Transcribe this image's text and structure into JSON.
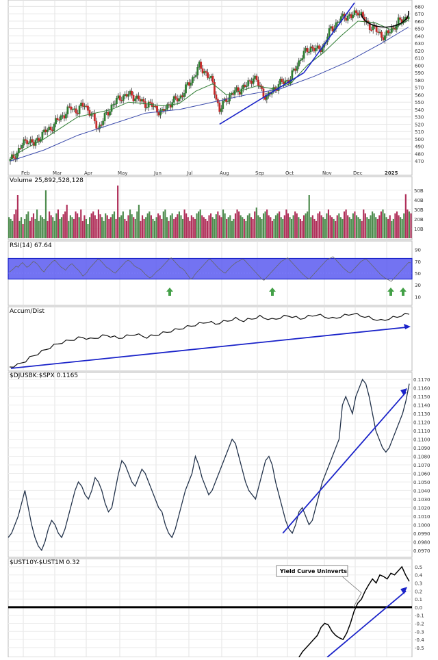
{
  "chart_data": [
    {
      "type": "candlestick",
      "panel": "price",
      "ylim": [
        460,
        685
      ],
      "y_ticks": [
        "680",
        "670",
        "660",
        "650",
        "640",
        "630",
        "620",
        "610",
        "600",
        "590",
        "580",
        "570",
        "560",
        "550",
        "540",
        "530",
        "520",
        "510",
        "500",
        "490",
        "480",
        "470"
      ],
      "x_labels": [
        "Feb",
        "Mar",
        "Apr",
        "May",
        "Jun",
        "Jul",
        "Aug",
        "Sep",
        "Oct",
        "Nov",
        "Dec",
        "2025"
      ],
      "close_path": [
        [
          0,
          470
        ],
        [
          5,
          485
        ],
        [
          10,
          500
        ],
        [
          14,
          492
        ],
        [
          18,
          505
        ],
        [
          24,
          515
        ],
        [
          30,
          530
        ],
        [
          36,
          542
        ],
        [
          40,
          538
        ],
        [
          44,
          548
        ],
        [
          48,
          532
        ],
        [
          52,
          515
        ],
        [
          55,
          525
        ],
        [
          60,
          545
        ],
        [
          66,
          558
        ],
        [
          72,
          560
        ],
        [
          78,
          550
        ],
        [
          84,
          545
        ],
        [
          90,
          535
        ],
        [
          94,
          548
        ],
        [
          100,
          555
        ],
        [
          106,
          575
        ],
        [
          112,
          598
        ],
        [
          116,
          590
        ],
        [
          120,
          575
        ],
        [
          124,
          538
        ],
        [
          128,
          555
        ],
        [
          134,
          565
        ],
        [
          140,
          572
        ],
        [
          144,
          585
        ],
        [
          148,
          570
        ],
        [
          152,
          555
        ],
        [
          156,
          568
        ],
        [
          160,
          575
        ],
        [
          166,
          582
        ],
        [
          172,
          610
        ],
        [
          178,
          625
        ],
        [
          182,
          620
        ],
        [
          186,
          628
        ],
        [
          190,
          650
        ],
        [
          194,
          658
        ],
        [
          198,
          668
        ],
        [
          202,
          665
        ],
        [
          206,
          675
        ],
        [
          210,
          660
        ],
        [
          214,
          652
        ],
        [
          218,
          645
        ],
        [
          222,
          638
        ],
        [
          226,
          650
        ],
        [
          230,
          658
        ],
        [
          236,
          668
        ]
      ],
      "ma_fast_path": [
        [
          0,
          475
        ],
        [
          10,
          488
        ],
        [
          20,
          500
        ],
        [
          30,
          515
        ],
        [
          40,
          530
        ],
        [
          50,
          535
        ],
        [
          60,
          540
        ],
        [
          70,
          550
        ],
        [
          80,
          548
        ],
        [
          90,
          545
        ],
        [
          100,
          548
        ],
        [
          110,
          565
        ],
        [
          120,
          575
        ],
        [
          128,
          560
        ],
        [
          136,
          565
        ],
        [
          146,
          572
        ],
        [
          156,
          568
        ],
        [
          166,
          575
        ],
        [
          176,
          600
        ],
        [
          186,
          618
        ],
        [
          196,
          640
        ],
        [
          206,
          660
        ],
        [
          216,
          658
        ],
        [
          226,
          648
        ],
        [
          236,
          662
        ]
      ],
      "ma_slow_path": [
        [
          0,
          470
        ],
        [
          20,
          485
        ],
        [
          40,
          505
        ],
        [
          60,
          520
        ],
        [
          80,
          535
        ],
        [
          100,
          540
        ],
        [
          120,
          550
        ],
        [
          140,
          560
        ],
        [
          160,
          568
        ],
        [
          180,
          585
        ],
        [
          200,
          605
        ],
        [
          220,
          630
        ],
        [
          236,
          652
        ]
      ],
      "annotations": [
        {
          "type": "trendline",
          "from": [
            124,
            520
          ],
          "to": [
            174,
            590
          ]
        },
        {
          "type": "trendline",
          "from": [
            174,
            590
          ],
          "to": [
            204,
            685
          ]
        },
        {
          "type": "ellipse",
          "center": [
            222,
            662
          ],
          "rx_days": 14,
          "ry": 20
        }
      ]
    },
    {
      "type": "bar",
      "panel": "volume",
      "title": "Volume 25,892,528,128",
      "ylim": [
        0,
        60
      ],
      "y_ticks": [
        "50B",
        "40B",
        "30B",
        "20B",
        "10B"
      ],
      "values": [
        22,
        20,
        18,
        25,
        30,
        45,
        18,
        22,
        15,
        20,
        25,
        28,
        18,
        22,
        26,
        20,
        30,
        18,
        24,
        22,
        20,
        50,
        18,
        28,
        24,
        22,
        18,
        26,
        30,
        20,
        22,
        25,
        28,
        35,
        18,
        24,
        22,
        20,
        28,
        26,
        22,
        30,
        18,
        24,
        20,
        15,
        22,
        26,
        28,
        24,
        20,
        30,
        25,
        22,
        18,
        26,
        24,
        20,
        22,
        25,
        28,
        20,
        55,
        22,
        24,
        28,
        20,
        18,
        24,
        30,
        25,
        22,
        20,
        28,
        35,
        18,
        24,
        20,
        22,
        26,
        28,
        24,
        20,
        18,
        22,
        26,
        24,
        20,
        28,
        30,
        22,
        18,
        24,
        26,
        20,
        22,
        25,
        28,
        24,
        20,
        30,
        26,
        22,
        18,
        24,
        22,
        20,
        26,
        28,
        30,
        24,
        22,
        20,
        18,
        24,
        26,
        22,
        20,
        25,
        28,
        24,
        22,
        30,
        26,
        20,
        22,
        24,
        18,
        20,
        26,
        30,
        28,
        24,
        22,
        20,
        18,
        24,
        26,
        22,
        20,
        28,
        32,
        24,
        22,
        20,
        26,
        28,
        30,
        24,
        22,
        18,
        20,
        24,
        26,
        28,
        22,
        20,
        24,
        30,
        26,
        22,
        20,
        24,
        28,
        26,
        22,
        20,
        18,
        24,
        26,
        28,
        45,
        22,
        24,
        20,
        18,
        26,
        28,
        24,
        22,
        20,
        26,
        30,
        24,
        22,
        20,
        18,
        24,
        26,
        22,
        20,
        28,
        30,
        24,
        22,
        20,
        26,
        28,
        24,
        22,
        20,
        18,
        30,
        26,
        22,
        20,
        24,
        28,
        26,
        22,
        20,
        24,
        28,
        30,
        26,
        22,
        20,
        24,
        18,
        20,
        26,
        28,
        24,
        22,
        20,
        26,
        46,
        30,
        28,
        26
      ],
      "up_down": "alternating"
    },
    {
      "type": "line",
      "panel": "rsi",
      "title": "RSI(14) 67.64",
      "ylim": [
        0,
        100
      ],
      "y_ticks": [
        "90",
        "70",
        "50",
        "30",
        "10"
      ],
      "band": [
        40,
        75
      ],
      "values": [
        52,
        55,
        58,
        62,
        60,
        65,
        68,
        64,
        60,
        62,
        66,
        70,
        68,
        65,
        60,
        55,
        52,
        58,
        62,
        66,
        70,
        72,
        68,
        64,
        60,
        58,
        55,
        60,
        64,
        66,
        62,
        58,
        55,
        50,
        45,
        48,
        52,
        58,
        62,
        66,
        70,
        74,
        72,
        68,
        64,
        60,
        58,
        55,
        52,
        50,
        54,
        58,
        62,
        66,
        70,
        72,
        70,
        66,
        62,
        60,
        58,
        56,
        52,
        48,
        45,
        42,
        44,
        48,
        52,
        55,
        58,
        62,
        66,
        70,
        74,
        76,
        72,
        68,
        64,
        60,
        58,
        55,
        50,
        45,
        40,
        42,
        48,
        52,
        56,
        60,
        64,
        68,
        72,
        74,
        70,
        66,
        62,
        58,
        55,
        52,
        50,
        54,
        58,
        62,
        65,
        68,
        70,
        72,
        74,
        72,
        68,
        64,
        60,
        56,
        52,
        48,
        44,
        40,
        38,
        42,
        46,
        50,
        54,
        58,
        62,
        66,
        70,
        72,
        74,
        76,
        72,
        68,
        64,
        60,
        56,
        52,
        48,
        45,
        42,
        40,
        44,
        48,
        52,
        56,
        60,
        64,
        68,
        72,
        74,
        76,
        78,
        74,
        70,
        66,
        62,
        58,
        55,
        52,
        50,
        54,
        58,
        62,
        66,
        70,
        72,
        74,
        72,
        68,
        64,
        60,
        56,
        52,
        48,
        45,
        42,
        40,
        38,
        36,
        40,
        44,
        48,
        52,
        56,
        60,
        64,
        68,
        67.64
      ]
    },
    {
      "type": "line",
      "panel": "accum_dist",
      "title": "Accum/Dist",
      "trendline": {
        "from_frac": [
          0.0,
          0.0
        ],
        "to_frac": [
          1.0,
          1.0
        ]
      },
      "values": [
        0,
        2,
        4,
        8,
        12,
        18,
        22,
        26,
        30,
        34,
        38,
        42,
        45,
        48,
        50,
        52,
        54,
        56,
        58,
        56,
        54,
        56,
        58,
        60,
        62,
        60,
        58,
        56,
        58,
        60,
        62,
        64,
        62,
        60,
        58,
        60,
        62,
        64,
        66,
        68,
        70,
        72,
        74,
        76,
        78,
        80,
        82,
        84,
        86,
        88,
        86,
        84,
        86,
        88,
        90,
        92,
        94,
        92,
        90,
        92,
        94,
        96,
        98,
        96,
        94,
        92,
        94,
        96,
        98,
        100,
        98,
        96,
        94,
        96,
        98,
        100,
        102,
        100,
        98,
        96,
        94,
        96,
        98,
        100,
        102,
        104,
        102,
        100,
        98,
        96,
        94,
        92,
        90,
        92,
        94,
        96,
        98,
        100,
        102,
        104
      ]
    },
    {
      "type": "line",
      "panel": "ratio",
      "title": "$DJUSBK:$SPX 0.1165",
      "ylim": [
        0.0965,
        0.1175
      ],
      "y_ticks": [
        "0.1170",
        "0.1160",
        "0.1150",
        "0.1140",
        "0.1130",
        "0.1120",
        "0.1110",
        "0.1100",
        "0.1090",
        "0.1080",
        "0.1070",
        "0.1060",
        "0.1050",
        "0.1040",
        "0.1030",
        "0.1020",
        "0.1010",
        "0.1000",
        "0.0990",
        "0.0980",
        "0.0970"
      ],
      "values": [
        0.0985,
        0.099,
        0.1,
        0.101,
        0.1025,
        0.104,
        0.102,
        0.1,
        0.0985,
        0.0975,
        0.097,
        0.098,
        0.0995,
        0.1005,
        0.1,
        0.099,
        0.0985,
        0.0995,
        0.101,
        0.1025,
        0.104,
        0.105,
        0.1045,
        0.1035,
        0.103,
        0.104,
        0.1055,
        0.105,
        0.104,
        0.1025,
        0.1015,
        0.102,
        0.104,
        0.106,
        0.1075,
        0.107,
        0.106,
        0.105,
        0.1045,
        0.1055,
        0.1065,
        0.106,
        0.105,
        0.104,
        0.103,
        0.102,
        0.1015,
        0.1,
        0.099,
        0.0985,
        0.0995,
        0.101,
        0.1025,
        0.104,
        0.105,
        0.106,
        0.108,
        0.107,
        0.1055,
        0.1045,
        0.1035,
        0.104,
        0.105,
        0.106,
        0.107,
        0.108,
        0.109,
        0.11,
        0.1095,
        0.108,
        0.1065,
        0.105,
        0.104,
        0.1035,
        0.103,
        0.1045,
        0.106,
        0.1075,
        0.108,
        0.107,
        0.105,
        0.1035,
        0.102,
        0.1005,
        0.0995,
        0.099,
        0.1,
        0.1015,
        0.102,
        0.101,
        0.1,
        0.1005,
        0.102,
        0.1035,
        0.105,
        0.106,
        0.107,
        0.108,
        0.109,
        0.11,
        0.114,
        0.115,
        0.114,
        0.113,
        0.115,
        0.116,
        0.117,
        0.1165,
        0.115,
        0.113,
        0.111,
        0.11,
        0.109,
        0.1085,
        0.109,
        0.11,
        0.111,
        0.112,
        0.113,
        0.1145,
        0.1165
      ],
      "trendline": {
        "from": [
          0.68,
          0.099
        ],
        "to": [
          0.985,
          0.1155
        ]
      }
    },
    {
      "type": "line",
      "panel": "yield_spread",
      "title": "$UST10Y-$UST1M 0.32",
      "ylim": [
        -0.62,
        0.55
      ],
      "y_ticks": [
        "0.5",
        "0.4",
        "0.3",
        "0.2",
        "0.1",
        "0.0",
        "-0.1",
        "-0.2",
        "-0.3",
        "-0.4",
        "-0.5"
      ],
      "zero_line": 0,
      "x_start_frac": 0.72,
      "values": [
        -0.62,
        -0.55,
        -0.5,
        -0.45,
        -0.4,
        -0.35,
        -0.25,
        -0.2,
        -0.22,
        -0.3,
        -0.35,
        -0.38,
        -0.4,
        -0.32,
        -0.2,
        -0.05,
        0.05,
        0.1,
        0.2,
        0.28,
        0.35,
        0.3,
        0.4,
        0.38,
        0.35,
        0.42,
        0.4,
        0.45,
        0.5,
        0.4,
        0.32
      ],
      "annotation": {
        "text": "Yield Curve Uninverts",
        "pointer_frac": [
          0.855,
          0.0
        ]
      },
      "trendline": {
        "from": [
          0.79,
          -0.62
        ],
        "to": [
          0.985,
          0.2
        ]
      }
    }
  ]
}
